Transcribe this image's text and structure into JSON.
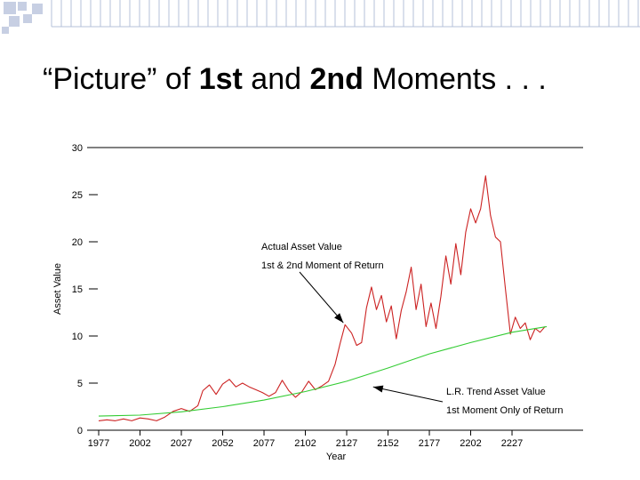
{
  "slide": {
    "title_parts": [
      "“Picture” of ",
      "1st",
      " and ",
      "2nd",
      " Moments . . ."
    ]
  },
  "colors": {
    "actual_line": "#cc2222",
    "trend_line": "#33cc33",
    "deco_squares": "#c7cfe3",
    "deco_lines": "#b4c0da"
  },
  "chart_data": {
    "type": "line",
    "title": "",
    "xlabel": "Year",
    "ylabel": "Asset Value",
    "xlim": [
      1970,
      2270
    ],
    "ylim": [
      0,
      30
    ],
    "x_ticks": [
      1977,
      2002,
      2027,
      2052,
      2077,
      2102,
      2127,
      2152,
      2177,
      2202,
      2227
    ],
    "y_ticks": [
      0,
      5,
      10,
      15,
      20,
      25,
      30
    ],
    "grid": false,
    "series": [
      {
        "id": "actual",
        "points": [
          [
            1977,
            1.0
          ],
          [
            1982,
            1.1
          ],
          [
            1987,
            1.0
          ],
          [
            1992,
            1.2
          ],
          [
            1997,
            1.0
          ],
          [
            2002,
            1.3
          ],
          [
            2007,
            1.2
          ],
          [
            2012,
            1.0
          ],
          [
            2017,
            1.4
          ],
          [
            2022,
            2.0
          ],
          [
            2027,
            2.3
          ],
          [
            2032,
            2.0
          ],
          [
            2037,
            2.6
          ],
          [
            2040,
            4.2
          ],
          [
            2044,
            4.8
          ],
          [
            2048,
            3.8
          ],
          [
            2052,
            4.9
          ],
          [
            2056,
            5.4
          ],
          [
            2060,
            4.6
          ],
          [
            2064,
            5.0
          ],
          [
            2068,
            4.6
          ],
          [
            2072,
            4.3
          ],
          [
            2076,
            4.0
          ],
          [
            2080,
            3.6
          ],
          [
            2084,
            4.0
          ],
          [
            2088,
            5.3
          ],
          [
            2092,
            4.2
          ],
          [
            2096,
            3.5
          ],
          [
            2100,
            4.1
          ],
          [
            2104,
            5.2
          ],
          [
            2108,
            4.3
          ],
          [
            2112,
            4.7
          ],
          [
            2116,
            5.2
          ],
          [
            2120,
            7.0
          ],
          [
            2123,
            9.2
          ],
          [
            2126,
            11.2
          ],
          [
            2130,
            10.3
          ],
          [
            2133,
            9.0
          ],
          [
            2136,
            9.3
          ],
          [
            2139,
            13.0
          ],
          [
            2142,
            15.2
          ],
          [
            2145,
            12.8
          ],
          [
            2148,
            14.3
          ],
          [
            2151,
            11.5
          ],
          [
            2154,
            13.2
          ],
          [
            2157,
            9.7
          ],
          [
            2160,
            12.7
          ],
          [
            2163,
            14.7
          ],
          [
            2166,
            17.3
          ],
          [
            2169,
            12.8
          ],
          [
            2172,
            15.5
          ],
          [
            2175,
            11.0
          ],
          [
            2178,
            13.5
          ],
          [
            2181,
            10.8
          ],
          [
            2184,
            14.2
          ],
          [
            2187,
            18.5
          ],
          [
            2190,
            15.5
          ],
          [
            2193,
            19.8
          ],
          [
            2196,
            16.5
          ],
          [
            2199,
            21.0
          ],
          [
            2202,
            23.5
          ],
          [
            2205,
            22.0
          ],
          [
            2208,
            23.5
          ],
          [
            2211,
            27.0
          ],
          [
            2214,
            22.8
          ],
          [
            2217,
            20.5
          ],
          [
            2220,
            20.0
          ],
          [
            2223,
            15.0
          ],
          [
            2226,
            10.2
          ],
          [
            2229,
            12.0
          ],
          [
            2232,
            10.8
          ],
          [
            2235,
            11.4
          ],
          [
            2238,
            9.6
          ],
          [
            2241,
            10.8
          ],
          [
            2244,
            10.4
          ],
          [
            2247,
            11.0
          ]
        ]
      },
      {
        "id": "trend",
        "points": [
          [
            1977,
            1.5
          ],
          [
            2002,
            1.6
          ],
          [
            2027,
            1.95
          ],
          [
            2052,
            2.5
          ],
          [
            2077,
            3.2
          ],
          [
            2102,
            4.1
          ],
          [
            2127,
            5.2
          ],
          [
            2152,
            6.6
          ],
          [
            2177,
            8.1
          ],
          [
            2202,
            9.3
          ],
          [
            2227,
            10.4
          ],
          [
            2248,
            11.0
          ]
        ]
      }
    ],
    "annotations": [
      {
        "id": "actual",
        "lines": [
          "Actual Asset Value",
          "1st & 2nd Moment of Return"
        ],
        "arrow_to": [
          2125,
          11.4
        ]
      },
      {
        "id": "trend",
        "lines": [
          "L.R. Trend Asset Value",
          "1st Moment Only of Return"
        ],
        "arrow_to": [
          2143,
          4.6
        ]
      }
    ]
  }
}
